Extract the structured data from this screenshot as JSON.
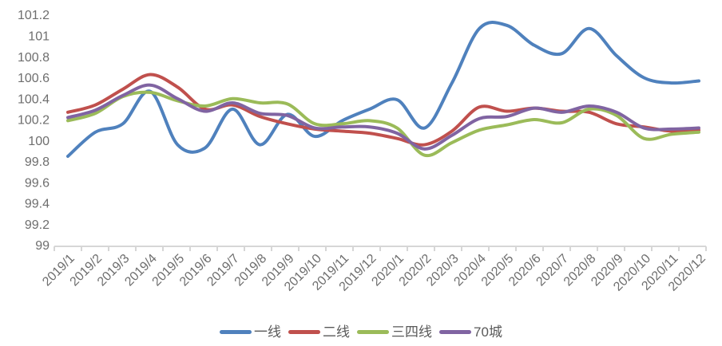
{
  "chart_data": {
    "type": "line",
    "title": "",
    "xlabel": "",
    "ylabel": "",
    "smooth": true,
    "grid": false,
    "legend_position": "bottom",
    "ylim": [
      99,
      101.2
    ],
    "y_tick_labels": [
      "99",
      "99.2",
      "99.4",
      "99.6",
      "99.8",
      "100",
      "100.2",
      "100.4",
      "100.6",
      "100.8",
      "101",
      "101.2"
    ],
    "categories": [
      "2019/1",
      "2019/2",
      "2019/3",
      "2019/4",
      "2019/5",
      "2019/6",
      "2019/7",
      "2019/8",
      "2019/9",
      "2019/10",
      "2019/11",
      "2019/12",
      "2020/1",
      "2020/2",
      "2020/3",
      "2020/4",
      "2020/5",
      "2020/6",
      "2020/7",
      "2020/8",
      "2020/9",
      "2020/10",
      "2020/11",
      "2020/12"
    ],
    "series": [
      {
        "name": "一线",
        "color": "#4F81BD",
        "values": [
          99.86,
          100.09,
          100.17,
          100.48,
          99.97,
          99.94,
          100.31,
          99.97,
          100.26,
          100.05,
          100.2,
          100.31,
          100.4,
          100.13,
          100.56,
          101.08,
          101.11,
          100.92,
          100.84,
          101.08,
          100.82,
          100.61,
          100.56,
          100.58
        ]
      },
      {
        "name": "二线",
        "color": "#C0504D",
        "values": [
          100.28,
          100.35,
          100.5,
          100.64,
          100.52,
          100.31,
          100.35,
          100.24,
          100.17,
          100.12,
          100.1,
          100.08,
          100.03,
          99.97,
          100.1,
          100.33,
          100.29,
          100.32,
          100.29,
          100.28,
          100.17,
          100.14,
          100.1,
          100.11
        ]
      },
      {
        "name": "三四线",
        "color": "#9BBB59",
        "values": [
          100.2,
          100.27,
          100.43,
          100.47,
          100.39,
          100.34,
          100.41,
          100.37,
          100.36,
          100.17,
          100.17,
          100.2,
          100.13,
          99.87,
          99.99,
          100.11,
          100.16,
          100.21,
          100.18,
          100.31,
          100.25,
          100.03,
          100.07,
          100.09
        ]
      },
      {
        "name": "70城",
        "color": "#8064A2",
        "values": [
          100.23,
          100.3,
          100.44,
          100.54,
          100.41,
          100.29,
          100.37,
          100.27,
          100.25,
          100.13,
          100.14,
          100.14,
          100.08,
          99.93,
          100.06,
          100.22,
          100.24,
          100.32,
          100.28,
          100.34,
          100.28,
          100.13,
          100.12,
          100.13
        ]
      }
    ],
    "axis_color": "#D6D6D6",
    "tick_label_color": "#6E6E6E"
  }
}
